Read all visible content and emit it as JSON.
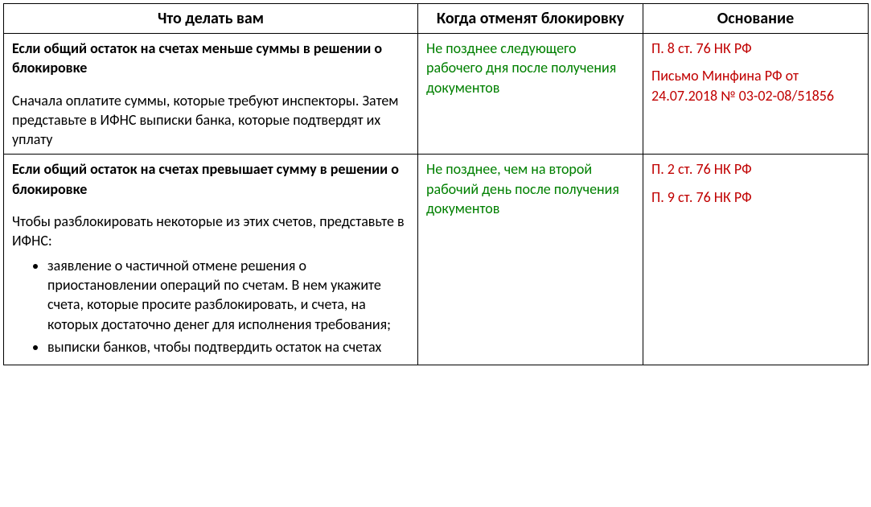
{
  "table": {
    "headers": {
      "what": "Что делать вам",
      "when": "Когда отменят блокировку",
      "basis": "Основание"
    },
    "rows": [
      {
        "what": {
          "lead_bold": "Если общий остаток на счетах меньше суммы в решении о блокировке",
          "body": "Сначала оплатите суммы, которые требуют инспекторы. Затем представьте в ИФНС выписки банка, которые подтвердят их уплату",
          "bullets": []
        },
        "when": "Не позднее следующего рабочего дня после получения документов",
        "basis": [
          "П. 8 ст. 76 НК РФ",
          "Письмо Минфина РФ от 24.07.2018 № 03-02-08/51856"
        ]
      },
      {
        "what": {
          "lead_bold": "Если общий остаток на счетах превышает сумму в решении о блокировке",
          "body": "Чтобы разблокировать некоторые из этих счетов, представьте в ИФНС:",
          "bullets": [
            "заявление о частичной отмене решения о приостановлении операций по счетам. В нем укажите счета, которые просите разблокировать, и счета, на которых достаточно денег для исполнения требования;",
            "выписки банков, чтобы подтвердить остаток на счетах"
          ]
        },
        "when": "Не позднее, чем на второй рабочий день после получения документов",
        "basis": [
          "П. 2 ст. 76 НК РФ",
          "П. 9 ст. 76 НК РФ"
        ]
      }
    ]
  },
  "colors": {
    "text_black": "#000000",
    "text_green": "#008000",
    "text_red": "#c00000",
    "border": "#000000",
    "background": "#ffffff"
  },
  "typography": {
    "font_family": "Calibri",
    "header_fontsize_pt": 15,
    "body_fontsize_pt": 13.5
  }
}
